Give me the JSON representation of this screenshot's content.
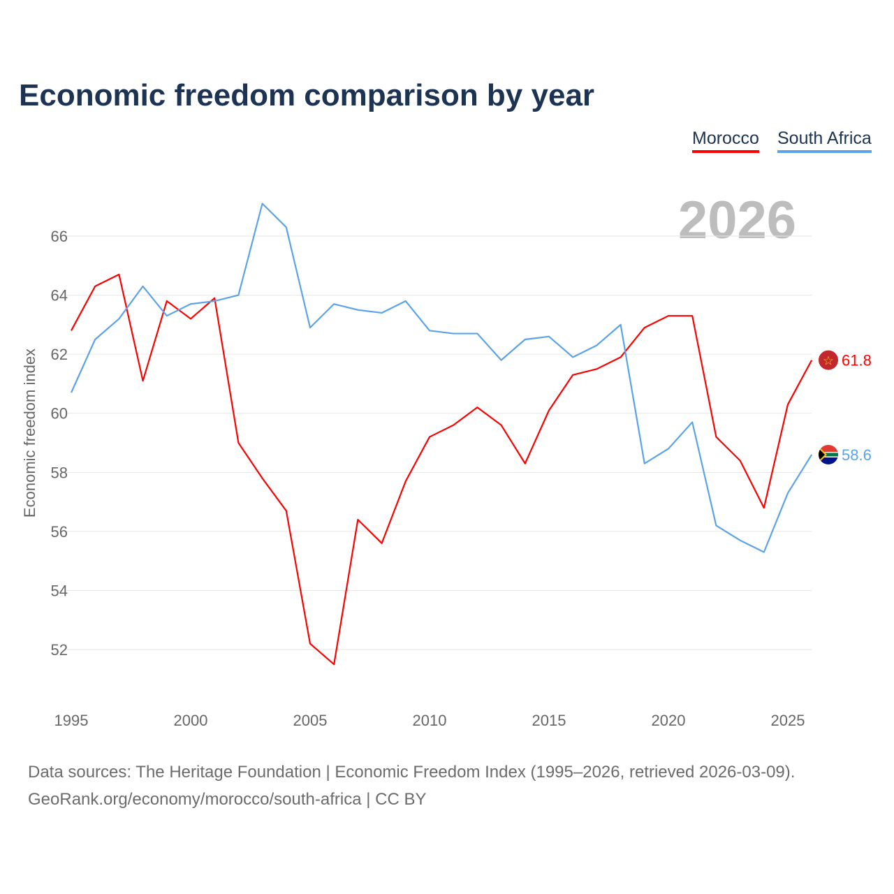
{
  "chart_data": {
    "type": "line",
    "title": "Economic freedom comparison by year",
    "xlabel": "",
    "ylabel": "Economic freedom index",
    "year_watermark": "2026",
    "x": [
      1995,
      1996,
      1997,
      1998,
      1999,
      2000,
      2001,
      2002,
      2003,
      2004,
      2005,
      2006,
      2007,
      2008,
      2009,
      2010,
      2011,
      2012,
      2013,
      2014,
      2015,
      2016,
      2017,
      2018,
      2019,
      2020,
      2021,
      2022,
      2023,
      2024,
      2025,
      2026
    ],
    "x_ticks": [
      1995,
      2000,
      2005,
      2010,
      2015,
      2020,
      2025
    ],
    "y_ticks": [
      52,
      54,
      56,
      58,
      60,
      62,
      64,
      66
    ],
    "ylim": [
      50.1,
      67.2
    ],
    "grid": true,
    "legend_position": "top-right",
    "series": [
      {
        "name": "Morocco",
        "color": "#ff0000",
        "end_label": "61.8",
        "values": [
          62.8,
          64.3,
          64.7,
          61.1,
          63.8,
          63.2,
          63.9,
          59.0,
          57.8,
          56.7,
          52.2,
          51.5,
          56.4,
          55.6,
          57.7,
          59.2,
          59.6,
          60.2,
          59.6,
          58.3,
          60.1,
          61.3,
          61.5,
          61.9,
          62.9,
          63.3,
          63.3,
          59.2,
          58.4,
          56.8,
          60.3,
          61.8
        ]
      },
      {
        "name": "South Africa",
        "color": "#5ba3e8",
        "end_label": "58.6",
        "values": [
          60.7,
          62.5,
          63.2,
          64.3,
          63.3,
          63.7,
          63.8,
          64.0,
          67.1,
          66.3,
          62.9,
          63.7,
          63.5,
          63.4,
          63.8,
          62.8,
          62.7,
          62.7,
          61.8,
          62.5,
          62.6,
          61.9,
          62.3,
          63.0,
          58.3,
          58.8,
          59.7,
          56.2,
          55.7,
          55.3,
          57.3,
          58.6
        ]
      }
    ]
  },
  "footer": {
    "line1": "Data sources: The Heritage Foundation | Economic Freedom Index (1995–2026, retrieved 2026-03-09).",
    "line2": "GeoRank.org/economy/morocco/south-africa | CC BY"
  }
}
